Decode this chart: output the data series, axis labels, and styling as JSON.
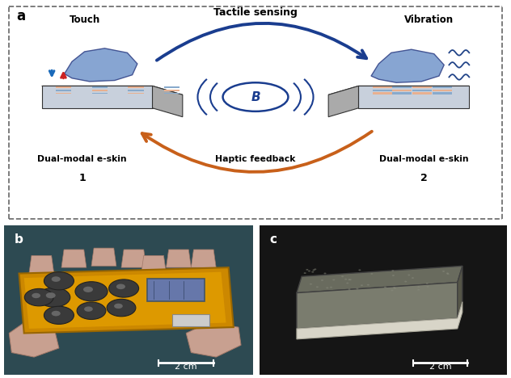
{
  "fig_width": 6.32,
  "fig_height": 4.68,
  "dpi": 100,
  "background": "#ffffff",
  "panel_a": {
    "label": "a",
    "title_top": "Tactile sensing",
    "label_left_top": "Touch",
    "label_right_top": "Vibration",
    "label_left_bottom1": "Dual-modal e-skin",
    "label_left_bottom2": "1",
    "label_center_bottom": "Haptic feedback",
    "label_right_bottom1": "Dual-modal e-skin",
    "label_right_bottom2": "2",
    "arrow_blue_color": "#1a3d8f",
    "arrow_orange_color": "#c8601a",
    "touch_arrow_blue": "#1a6aba",
    "touch_arrow_red": "#cc2222",
    "dashed_border_color": "#555555",
    "device_top_color": "#666666",
    "device_side_color": "#aaaaaa",
    "device_front_color": "#c8d0dc",
    "grid_orange": "#e8b090",
    "grid_blue": "#88aacc",
    "hand_color": "#7799cc",
    "hand_edge": "#334488"
  },
  "panel_b": {
    "label": "b",
    "scalebar_text": "2 cm",
    "bg_color": "#2d4a52"
  },
  "panel_c": {
    "label": "c",
    "scalebar_text": "2 cm",
    "bg_color": "#151515"
  }
}
